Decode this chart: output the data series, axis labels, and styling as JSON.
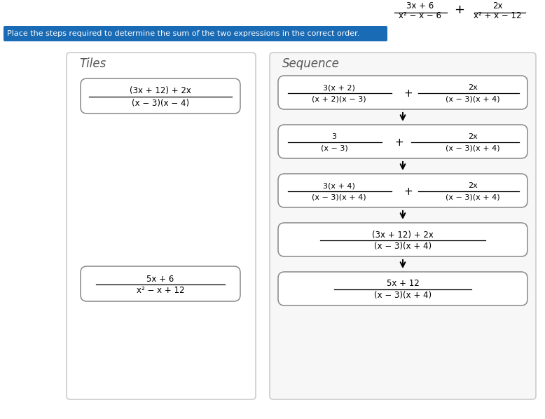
{
  "bg_color": "#f5f5f5",
  "instruction": "Place the steps required to determine the sum of the two expressions in the correct order.",
  "instruction_bg": "#1a6bb5",
  "tiles_title": "Tiles",
  "sequence_title": "Sequence",
  "tile1_num": "(3x + 12) + 2x",
  "tile1_den": "(x − 3)(x − 4)",
  "tile2_num": "5x + 6",
  "tile2_den": "x² − x + 12",
  "header_left_num": "3x + 6",
  "header_left_den": "x² − x − 6",
  "header_right_num": "2x",
  "header_right_den": "x² + x − 12"
}
